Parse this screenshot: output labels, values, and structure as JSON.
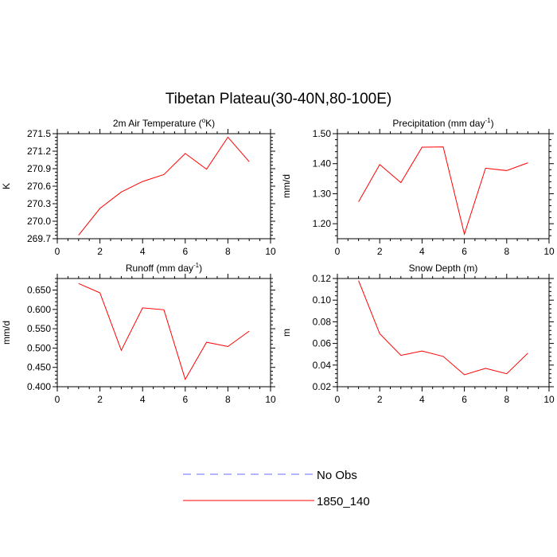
{
  "figure_title": "Tibetan Plateau(30-40N,80-100E)",
  "legend": [
    {
      "label": "No Obs",
      "color": "#6b6bff",
      "style": "dashed"
    },
    {
      "label": "1850_140",
      "color": "#ff0000",
      "style": "solid"
    }
  ],
  "chart_data": [
    {
      "type": "line",
      "title_main": "2m Air Temperature (",
      "title_sup": "o",
      "title_end": "K)",
      "ylabel": "K",
      "xlim": [
        0,
        10
      ],
      "ylim": [
        269.7,
        271.5
      ],
      "xticks": [
        "0",
        "2",
        "4",
        "6",
        "8",
        "10"
      ],
      "yticks": [
        "269.7",
        "270.0",
        "270.3",
        "270.6",
        "270.9",
        "271.2",
        "271.5"
      ],
      "series": [
        {
          "color": "#ff0000",
          "x": [
            1,
            2,
            3,
            4,
            5,
            6,
            7,
            8,
            9
          ],
          "values": [
            269.76,
            270.22,
            270.5,
            270.68,
            270.8,
            271.16,
            270.89,
            271.44,
            271.02
          ]
        }
      ]
    },
    {
      "type": "line",
      "title_main": "Precipitation (mm day",
      "title_sup": "-1",
      "title_end": ")",
      "ylabel": "mm/d",
      "xlim": [
        0,
        10
      ],
      "ylim": [
        1.15,
        1.5
      ],
      "xticks": [
        "0",
        "2",
        "4",
        "6",
        "8",
        "10"
      ],
      "yticks": [
        "1.20",
        "1.30",
        "1.40",
        "1.50"
      ],
      "series": [
        {
          "color": "#ff0000",
          "x": [
            1,
            2,
            3,
            4,
            5,
            6,
            7,
            8,
            9
          ],
          "values": [
            1.273,
            1.397,
            1.337,
            1.455,
            1.456,
            1.165,
            1.385,
            1.377,
            1.403
          ]
        }
      ]
    },
    {
      "type": "line",
      "title_main": "Runoff (mm day",
      "title_sup": "-1",
      "title_end": ")",
      "ylabel": "mm/d",
      "xlim": [
        0,
        10
      ],
      "ylim": [
        0.4,
        0.68
      ],
      "xticks": [
        "0",
        "2",
        "4",
        "6",
        "8",
        "10"
      ],
      "yticks": [
        "0.400",
        "0.450",
        "0.500",
        "0.550",
        "0.600",
        "0.650"
      ],
      "series": [
        {
          "color": "#ff0000",
          "x": [
            1,
            2,
            3,
            4,
            5,
            6,
            7,
            8,
            9
          ],
          "values": [
            0.667,
            0.643,
            0.494,
            0.604,
            0.599,
            0.419,
            0.515,
            0.504,
            0.544
          ]
        }
      ]
    },
    {
      "type": "line",
      "title_main": "Snow Depth (m)",
      "title_sup": "",
      "title_end": "",
      "ylabel": "m",
      "xlim": [
        0,
        10
      ],
      "ylim": [
        0.02,
        0.12
      ],
      "xticks": [
        "0",
        "2",
        "4",
        "6",
        "8",
        "10"
      ],
      "yticks": [
        "0.02",
        "0.04",
        "0.06",
        "0.08",
        "0.10",
        "0.12"
      ],
      "series": [
        {
          "color": "#ff0000",
          "x": [
            1,
            2,
            3,
            4,
            5,
            6,
            7,
            8,
            9
          ],
          "values": [
            0.118,
            0.069,
            0.049,
            0.053,
            0.048,
            0.031,
            0.037,
            0.032,
            0.051
          ]
        }
      ]
    }
  ]
}
